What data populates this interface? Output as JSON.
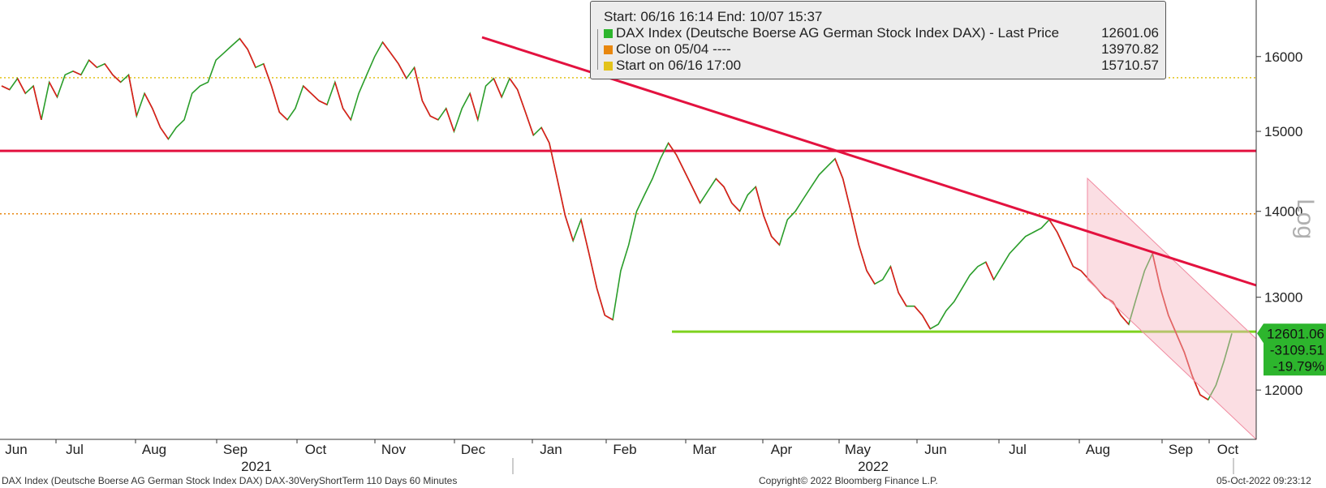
{
  "legend": {
    "header": "Start: 06/16 16:14 End: 10/07 15:37",
    "rows": [
      {
        "label": "DAX Index (Deutsche Boerse AG German Stock Index DAX) - Last Price",
        "value": "12601.06",
        "color": "#2db52d"
      },
      {
        "label": "Close on 05/04 ----",
        "value": "13970.82",
        "color": "#e8870f"
      },
      {
        "label": "Start on 06/16 17:00",
        "value": "15710.57",
        "color": "#e3c31b"
      }
    ]
  },
  "footer": {
    "left": "DAX Index (Deutsche Boerse AG German Stock Index DAX) DAX-30VeryShortTerm 110 Days 60 Minutes",
    "center": "Copyright© 2022 Bloomberg Finance L.P.",
    "right": "05-Oct-2022 09:23:12"
  },
  "chart_data": {
    "type": "line",
    "scale": "log",
    "yaxis_label": "Log",
    "yticks": [
      12000,
      13000,
      14000,
      15000,
      16000
    ],
    "ylim": [
      11500,
      16800
    ],
    "month_labels": [
      "Jun",
      "Jul",
      "Aug",
      "Sep",
      "Oct",
      "Nov",
      "Dec",
      "Jan",
      "Feb",
      "Mar",
      "Apr",
      "May",
      "Jun",
      "Jul",
      "Aug",
      "Sep",
      "Oct"
    ],
    "year_labels": [
      "2021",
      "2022"
    ],
    "last_price_box": {
      "price": "12601.06",
      "change": "-3109.51",
      "pct": "-19.79%"
    },
    "series": [
      {
        "name": "DAX Index (Deutsche Boerse AG German Stock Index DAX) - Last Price",
        "values": [
          15600,
          15550,
          15700,
          15500,
          15600,
          15150,
          15650,
          15450,
          15750,
          15800,
          15750,
          15950,
          15850,
          15900,
          15750,
          15650,
          15750,
          15200,
          15500,
          15300,
          15050,
          14900,
          15050,
          15150,
          15500,
          15600,
          15650,
          15950,
          16050,
          16150,
          16250,
          16100,
          15850,
          15900,
          15600,
          15250,
          15150,
          15300,
          15600,
          15500,
          15400,
          15350,
          15650,
          15300,
          15150,
          15500,
          15750,
          16000,
          16200,
          16050,
          15900,
          15700,
          15850,
          15400,
          15200,
          15150,
          15300,
          15000,
          15300,
          15500,
          15150,
          15600,
          15700,
          15450,
          15700,
          15550,
          15250,
          14950,
          15050,
          14850,
          14400,
          13950,
          13650,
          13900,
          13500,
          13100,
          12800,
          12750,
          13300,
          13600,
          14000,
          14200,
          14400,
          14650,
          14850,
          14700,
          14500,
          14300,
          14100,
          14250,
          14400,
          14300,
          14100,
          14000,
          14200,
          14300,
          13950,
          13700,
          13600,
          13900,
          14000,
          14150,
          14300,
          14450,
          14550,
          14650,
          14400,
          14000,
          13600,
          13300,
          13150,
          13200,
          13350,
          13050,
          12900,
          12900,
          12800,
          12650,
          12700,
          12850,
          12950,
          13100,
          13250,
          13350,
          13400,
          13200,
          13350,
          13500,
          13600,
          13700,
          13750,
          13800,
          13900,
          13750,
          13550,
          13350,
          13300,
          13200,
          13100,
          13000,
          12950,
          12800,
          12700,
          13000,
          13300,
          13500,
          13100,
          12800,
          12600,
          12400,
          12150,
          11950,
          11900,
          12050,
          12300,
          12601.06
        ]
      }
    ],
    "reference_lines": [
      {
        "value": 15710.57,
        "color": "#e3c31b",
        "style": "dotted"
      },
      {
        "value": 13970.82,
        "color": "#e8870f",
        "style": "dotted"
      },
      {
        "value": 14750,
        "color": "#e3123f",
        "style": "solid"
      },
      {
        "value": 12620,
        "color": "#7fd21f",
        "style": "solid"
      }
    ]
  }
}
